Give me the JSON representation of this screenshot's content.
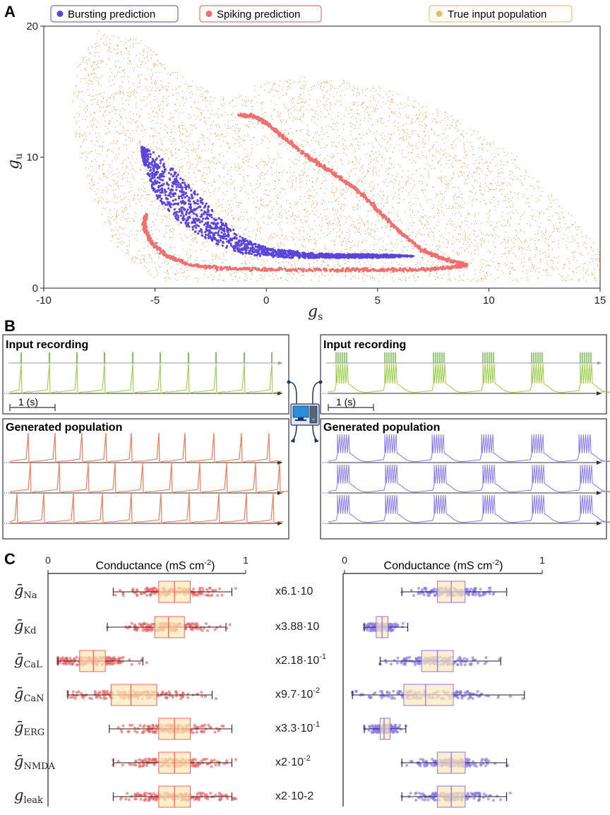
{
  "panel_a": {
    "letter": "A",
    "legend": {
      "bursting": "Bursting prediction",
      "spiking": "Spiking prediction",
      "population": "True input population"
    },
    "colors": {
      "bursting": "#5b45d9",
      "spiking": "#f07070",
      "population": "#e8a060"
    }
  },
  "panel_b": {
    "letter": "B",
    "left_input_title": "Input recording",
    "right_input_title": "Input recording",
    "left_gen_title": "Generated population",
    "right_gen_title": "Generated population",
    "scale_label_left": "1 (s)",
    "scale_label_right": "1 (s)",
    "colors": {
      "spike_green": "#99cc44",
      "burst_green": "#55aa22",
      "spiking_red": "#f07050",
      "bursting_purple": "#8877ee"
    }
  },
  "panel_c": {
    "letter": "C",
    "axis_title_left": "Conductance (mS cm",
    "axis_title_right": "Conductance (mS cm",
    "axis_title_sup": "-2",
    "axis_title_close": ")"
  },
  "chart_data": [
    {
      "type": "scatter",
      "title": "",
      "xlabel": "g_s",
      "ylabel": "g_u",
      "xlabel_main": "g",
      "xlabel_sub": "s",
      "ylabel_main": "g",
      "ylabel_sub": "u",
      "xlim": [
        -10,
        15
      ],
      "ylim": [
        0,
        20
      ],
      "xticks": [
        -10,
        -5,
        0,
        5,
        10,
        15
      ],
      "xtick_labels": [
        "-10",
        "-5",
        "0",
        "5",
        "10",
        "15"
      ],
      "yticks": [
        0,
        10,
        20
      ],
      "ytick_labels": [
        "0",
        "10",
        "20"
      ],
      "legend_position": "top",
      "series": [
        {
          "name": "True input population",
          "kind": "cloud",
          "outline": [
            [
              -7.5,
              19.8
            ],
            [
              -5.5,
              19.0
            ],
            [
              -4,
              16.5
            ],
            [
              -2,
              14.5
            ],
            [
              0,
              15.8
            ],
            [
              2,
              16.2
            ],
            [
              5,
              15.5
            ],
            [
              8,
              13.5
            ],
            [
              11,
              10.5
            ],
            [
              13,
              7
            ],
            [
              15,
              3
            ],
            [
              15,
              0.5
            ],
            [
              -5,
              0.5
            ],
            [
              -7,
              3.5
            ],
            [
              -8,
              8
            ],
            [
              -8.8,
              13
            ],
            [
              -8.5,
              17
            ]
          ]
        },
        {
          "name": "Spiking prediction",
          "kind": "curve",
          "points": [
            [
              -1.2,
              13.2
            ],
            [
              -0.5,
              13.1
            ],
            [
              0,
              12.6
            ],
            [
              1,
              11.2
            ],
            [
              2,
              9.9
            ],
            [
              3,
              8.8
            ],
            [
              4,
              7.6
            ],
            [
              5,
              6.0
            ],
            [
              6,
              4.3
            ],
            [
              7,
              2.9
            ],
            [
              8,
              2.2
            ],
            [
              9,
              1.8
            ],
            [
              8.5,
              1.6
            ],
            [
              7,
              1.4
            ],
            [
              5,
              1.4
            ],
            [
              3,
              1.4
            ],
            [
              0,
              1.4
            ],
            [
              -2,
              1.5
            ],
            [
              -3.5,
              1.8
            ],
            [
              -4.5,
              2.5
            ],
            [
              -5.2,
              3.5
            ],
            [
              -5.5,
              4.8
            ],
            [
              -5.4,
              5.6
            ]
          ]
        },
        {
          "name": "Bursting prediction",
          "kind": "band",
          "upper": [
            [
              -5.6,
              10.8
            ],
            [
              -5,
              10.4
            ],
            [
              -4,
              8.8
            ],
            [
              -3,
              7.0
            ],
            [
              -2,
              5.2
            ],
            [
              -1,
              3.8
            ],
            [
              0,
              3.1
            ],
            [
              1,
              2.9
            ],
            [
              2,
              2.7
            ],
            [
              3,
              2.6
            ],
            [
              4,
              2.6
            ],
            [
              5,
              2.6
            ],
            [
              6.6,
              2.5
            ]
          ],
          "lower": [
            [
              -5.6,
              10.0
            ],
            [
              -5,
              7.0
            ],
            [
              -4,
              5.2
            ],
            [
              -3,
              4.0
            ],
            [
              -2,
              3.2
            ],
            [
              -1,
              2.6
            ],
            [
              0,
              2.4
            ],
            [
              1,
              2.3
            ],
            [
              2,
              2.3
            ],
            [
              3,
              2.3
            ],
            [
              4,
              2.3
            ],
            [
              5,
              2.3
            ],
            [
              6.6,
              2.4
            ]
          ]
        }
      ]
    },
    {
      "type": "box",
      "title": "Conductance (mS cm-2)",
      "xlim": [
        0,
        1
      ],
      "xtick_labels": [
        "0",
        "1"
      ],
      "categories": [
        "gNa",
        "gKd",
        "gCaL",
        "gCaN",
        "gERG",
        "gNMDA",
        "gleak"
      ],
      "row_labels": [
        {
          "main": "ḡ",
          "sub": "Na"
        },
        {
          "main": "ḡ",
          "sub": "Kd"
        },
        {
          "main": "ḡ",
          "sub": "CaL"
        },
        {
          "main": "ḡ",
          "sub": "CaN"
        },
        {
          "main": "ḡ",
          "sub": "ERG"
        },
        {
          "main": "ḡ",
          "sub": "NMDA"
        },
        {
          "main": "g",
          "sub": "leak"
        }
      ],
      "scale_labels": [
        {
          "text": "x6.1·10",
          "sup": ""
        },
        {
          "text": "x3.88·10",
          "sup": ""
        },
        {
          "text": "x2.18·10",
          "sup": "-1"
        },
        {
          "text": "x9.7·10",
          "sup": "-2"
        },
        {
          "text": "x3.3·10",
          "sup": "-1"
        },
        {
          "text": "x2·10",
          "sup": "-2"
        },
        {
          "text": "x2·10-2",
          "sup": ""
        }
      ],
      "series": [
        {
          "name": "Spiking",
          "color": "#f06060",
          "boxes": [
            {
              "min": 0.33,
              "q1": 0.56,
              "median": 0.64,
              "q3": 0.72,
              "max": 0.93
            },
            {
              "min": 0.3,
              "q1": 0.54,
              "median": 0.61,
              "q3": 0.69,
              "max": 0.9
            },
            {
              "min": 0.05,
              "q1": 0.16,
              "median": 0.23,
              "q3": 0.29,
              "max": 0.48
            },
            {
              "min": 0.1,
              "q1": 0.32,
              "median": 0.42,
              "q3": 0.55,
              "max": 0.83
            },
            {
              "min": 0.31,
              "q1": 0.56,
              "median": 0.64,
              "q3": 0.72,
              "max": 0.93
            },
            {
              "min": 0.33,
              "q1": 0.56,
              "median": 0.64,
              "q3": 0.72,
              "max": 0.93
            },
            {
              "min": 0.33,
              "q1": 0.56,
              "median": 0.64,
              "q3": 0.72,
              "max": 0.93
            }
          ]
        },
        {
          "name": "Bursting",
          "color": "#8877ee",
          "boxes": [
            {
              "min": 0.29,
              "q1": 0.47,
              "median": 0.54,
              "q3": 0.61,
              "max": 0.82
            },
            {
              "min": 0.1,
              "q1": 0.16,
              "median": 0.19,
              "q3": 0.22,
              "max": 0.32
            },
            {
              "min": 0.18,
              "q1": 0.39,
              "median": 0.47,
              "q3": 0.55,
              "max": 0.79
            },
            {
              "min": 0.04,
              "q1": 0.3,
              "median": 0.41,
              "q3": 0.55,
              "max": 0.91
            },
            {
              "min": 0.1,
              "q1": 0.18,
              "median": 0.2,
              "q3": 0.23,
              "max": 0.31
            },
            {
              "min": 0.29,
              "q1": 0.47,
              "median": 0.54,
              "q3": 0.61,
              "max": 0.82
            },
            {
              "min": 0.29,
              "q1": 0.47,
              "median": 0.54,
              "q3": 0.61,
              "max": 0.82
            }
          ]
        }
      ]
    }
  ]
}
